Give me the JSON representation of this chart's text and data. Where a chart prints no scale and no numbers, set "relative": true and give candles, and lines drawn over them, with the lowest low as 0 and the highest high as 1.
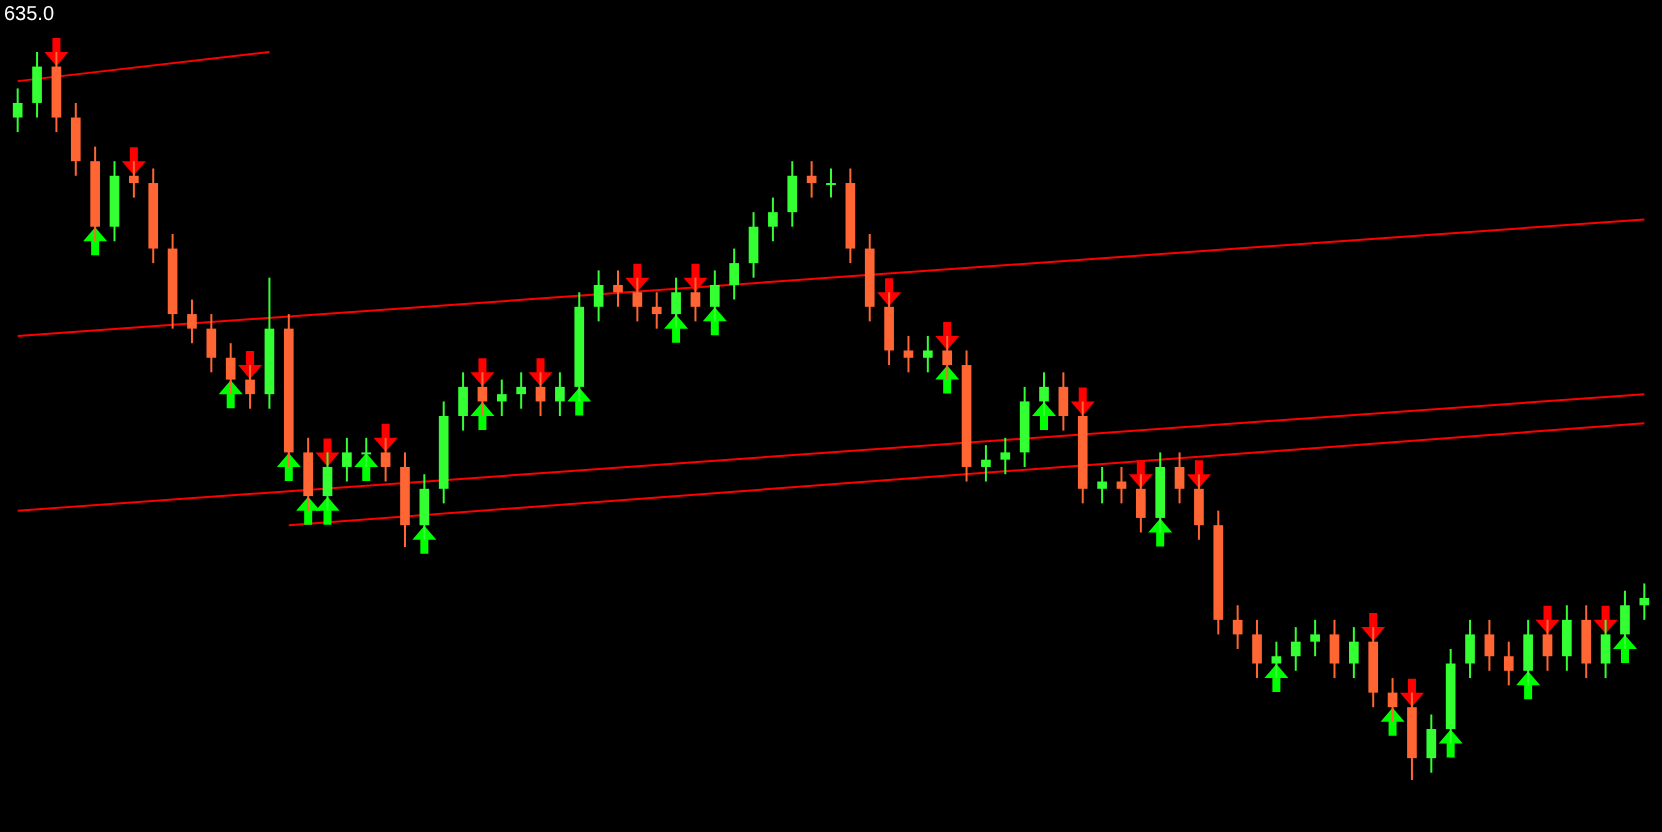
{
  "chart_data": {
    "type": "candlestick",
    "relative": true,
    "annotations": [
      "635.0"
    ],
    "categories": [
      null,
      null,
      null,
      null,
      null,
      null,
      null,
      null,
      null,
      null,
      null,
      null,
      null,
      null,
      null,
      null,
      null,
      null,
      null,
      null,
      null,
      null,
      null,
      null,
      null,
      null,
      null,
      null,
      null,
      null,
      null,
      null,
      null,
      null,
      null,
      null,
      null,
      null,
      null,
      null,
      null,
      null,
      null,
      null,
      null,
      null,
      null,
      null,
      null,
      null,
      null,
      null,
      null,
      null,
      null,
      null,
      null,
      null,
      null,
      null,
      null,
      null,
      null,
      null,
      null,
      null,
      null,
      null,
      null,
      null,
      null,
      null,
      null,
      null,
      null,
      null,
      null,
      null,
      null,
      null,
      null,
      null,
      null,
      null,
      null
    ],
    "ohlc": [
      [
        0.91,
        0.95,
        0.89,
        0.93
      ],
      [
        0.93,
        1.0,
        0.91,
        0.98
      ],
      [
        0.98,
        1.0,
        0.89,
        0.91
      ],
      [
        0.91,
        0.93,
        0.83,
        0.85
      ],
      [
        0.85,
        0.87,
        0.74,
        0.76
      ],
      [
        0.76,
        0.85,
        0.74,
        0.83
      ],
      [
        0.83,
        0.85,
        0.8,
        0.82
      ],
      [
        0.82,
        0.84,
        0.71,
        0.73
      ],
      [
        0.73,
        0.75,
        0.62,
        0.64
      ],
      [
        0.64,
        0.66,
        0.6,
        0.62
      ],
      [
        0.62,
        0.64,
        0.56,
        0.58
      ],
      [
        0.58,
        0.6,
        0.53,
        0.55
      ],
      [
        0.55,
        0.57,
        0.51,
        0.53
      ],
      [
        0.53,
        0.69,
        0.51,
        0.62
      ],
      [
        0.62,
        0.64,
        0.43,
        0.45
      ],
      [
        0.45,
        0.47,
        0.37,
        0.39
      ],
      [
        0.39,
        0.45,
        0.37,
        0.43
      ],
      [
        0.43,
        0.47,
        0.41,
        0.45
      ],
      [
        0.45,
        0.47,
        0.43,
        0.45
      ],
      [
        0.45,
        0.47,
        0.41,
        0.43
      ],
      [
        0.43,
        0.45,
        0.32,
        0.35
      ],
      [
        0.35,
        0.42,
        0.33,
        0.4
      ],
      [
        0.4,
        0.52,
        0.38,
        0.5
      ],
      [
        0.5,
        0.56,
        0.48,
        0.54
      ],
      [
        0.54,
        0.56,
        0.5,
        0.52
      ],
      [
        0.52,
        0.55,
        0.5,
        0.53
      ],
      [
        0.53,
        0.56,
        0.51,
        0.54
      ],
      [
        0.54,
        0.56,
        0.5,
        0.52
      ],
      [
        0.52,
        0.56,
        0.5,
        0.54
      ],
      [
        0.54,
        0.67,
        0.52,
        0.65
      ],
      [
        0.65,
        0.7,
        0.63,
        0.68
      ],
      [
        0.68,
        0.7,
        0.65,
        0.67
      ],
      [
        0.67,
        0.69,
        0.63,
        0.65
      ],
      [
        0.65,
        0.67,
        0.62,
        0.64
      ],
      [
        0.64,
        0.69,
        0.62,
        0.67
      ],
      [
        0.67,
        0.69,
        0.63,
        0.65
      ],
      [
        0.65,
        0.7,
        0.63,
        0.68
      ],
      [
        0.68,
        0.73,
        0.66,
        0.71
      ],
      [
        0.71,
        0.78,
        0.69,
        0.76
      ],
      [
        0.76,
        0.8,
        0.74,
        0.78
      ],
      [
        0.78,
        0.85,
        0.76,
        0.83
      ],
      [
        0.83,
        0.85,
        0.8,
        0.82
      ],
      [
        0.82,
        0.84,
        0.8,
        0.82
      ],
      [
        0.82,
        0.84,
        0.71,
        0.73
      ],
      [
        0.73,
        0.75,
        0.63,
        0.65
      ],
      [
        0.65,
        0.67,
        0.57,
        0.59
      ],
      [
        0.59,
        0.61,
        0.56,
        0.58
      ],
      [
        0.58,
        0.61,
        0.56,
        0.59
      ],
      [
        0.59,
        0.61,
        0.55,
        0.57
      ],
      [
        0.57,
        0.59,
        0.41,
        0.43
      ],
      [
        0.43,
        0.46,
        0.41,
        0.44
      ],
      [
        0.44,
        0.47,
        0.42,
        0.45
      ],
      [
        0.45,
        0.54,
        0.43,
        0.52
      ],
      [
        0.52,
        0.56,
        0.5,
        0.54
      ],
      [
        0.54,
        0.56,
        0.48,
        0.5
      ],
      [
        0.5,
        0.52,
        0.38,
        0.4
      ],
      [
        0.4,
        0.43,
        0.38,
        0.41
      ],
      [
        0.41,
        0.43,
        0.38,
        0.4
      ],
      [
        0.4,
        0.42,
        0.34,
        0.36
      ],
      [
        0.36,
        0.45,
        0.34,
        0.43
      ],
      [
        0.43,
        0.45,
        0.38,
        0.4
      ],
      [
        0.4,
        0.42,
        0.33,
        0.35
      ],
      [
        0.35,
        0.37,
        0.2,
        0.22
      ],
      [
        0.22,
        0.24,
        0.18,
        0.2
      ],
      [
        0.2,
        0.22,
        0.14,
        0.16
      ],
      [
        0.16,
        0.19,
        0.14,
        0.17
      ],
      [
        0.17,
        0.21,
        0.15,
        0.19
      ],
      [
        0.19,
        0.22,
        0.17,
        0.2
      ],
      [
        0.2,
        0.22,
        0.14,
        0.16
      ],
      [
        0.16,
        0.21,
        0.14,
        0.19
      ],
      [
        0.19,
        0.21,
        0.1,
        0.12
      ],
      [
        0.12,
        0.14,
        0.08,
        0.1
      ],
      [
        0.1,
        0.12,
        0.0,
        0.03
      ],
      [
        0.03,
        0.09,
        0.01,
        0.07
      ],
      [
        0.07,
        0.18,
        0.05,
        0.16
      ],
      [
        0.16,
        0.22,
        0.14,
        0.2
      ],
      [
        0.2,
        0.22,
        0.15,
        0.17
      ],
      [
        0.17,
        0.19,
        0.13,
        0.15
      ],
      [
        0.15,
        0.22,
        0.13,
        0.2
      ],
      [
        0.2,
        0.22,
        0.15,
        0.17
      ],
      [
        0.17,
        0.24,
        0.15,
        0.22
      ],
      [
        0.22,
        0.24,
        0.14,
        0.16
      ],
      [
        0.16,
        0.22,
        0.14,
        0.2
      ],
      [
        0.2,
        0.26,
        0.18,
        0.24
      ],
      [
        0.24,
        0.27,
        0.22,
        0.25
      ]
    ],
    "series": [
      {
        "type": "line",
        "color": "#ff0000",
        "values": [
          0.96,
          null,
          null,
          null,
          null,
          null,
          null,
          null,
          null,
          null,
          null,
          null,
          null,
          1.0,
          null,
          null,
          null,
          null,
          null,
          null,
          null,
          null,
          null,
          null,
          null,
          null,
          null,
          null,
          null,
          null,
          null,
          null,
          null,
          null,
          null,
          null,
          null,
          null,
          null,
          null,
          null,
          null,
          null,
          null,
          null,
          null,
          null,
          null,
          null,
          null,
          null,
          null,
          null,
          null,
          null,
          null,
          null,
          null,
          null,
          null,
          null,
          null,
          null,
          null,
          null,
          null,
          null,
          null,
          null,
          null,
          null,
          null,
          null,
          null,
          null,
          null,
          null,
          null,
          null,
          null,
          null,
          null,
          null,
          null,
          null
        ]
      },
      {
        "type": "line",
        "color": "#ff0000",
        "values": [
          0.61,
          null,
          null,
          null,
          null,
          null,
          null,
          null,
          null,
          null,
          null,
          null,
          null,
          null,
          null,
          null,
          null,
          null,
          null,
          null,
          null,
          null,
          null,
          null,
          null,
          null,
          null,
          null,
          null,
          null,
          null,
          null,
          null,
          null,
          null,
          null,
          null,
          null,
          null,
          null,
          null,
          null,
          null,
          null,
          null,
          null,
          null,
          null,
          null,
          null,
          null,
          null,
          null,
          null,
          null,
          null,
          null,
          null,
          null,
          null,
          null,
          null,
          null,
          null,
          null,
          null,
          null,
          null,
          null,
          null,
          null,
          null,
          null,
          null,
          null,
          null,
          null,
          null,
          null,
          null,
          null,
          null,
          null,
          null,
          0.77
        ]
      },
      {
        "type": "line",
        "color": "#ff0000",
        "values": [
          0.37,
          null,
          null,
          null,
          null,
          null,
          null,
          null,
          null,
          null,
          null,
          null,
          null,
          null,
          null,
          null,
          null,
          null,
          null,
          null,
          null,
          null,
          null,
          null,
          null,
          null,
          null,
          null,
          null,
          null,
          null,
          null,
          null,
          null,
          null,
          null,
          null,
          null,
          null,
          null,
          null,
          null,
          null,
          null,
          null,
          null,
          null,
          null,
          null,
          null,
          null,
          null,
          null,
          null,
          null,
          null,
          null,
          null,
          null,
          null,
          null,
          null,
          null,
          null,
          null,
          null,
          null,
          null,
          null,
          null,
          null,
          null,
          null,
          null,
          null,
          null,
          null,
          null,
          null,
          null,
          null,
          null,
          null,
          null,
          0.53
        ]
      },
      {
        "type": "line",
        "color": "#ff0000",
        "values": [
          null,
          null,
          null,
          null,
          null,
          null,
          null,
          null,
          null,
          null,
          null,
          null,
          null,
          null,
          0.35,
          null,
          null,
          null,
          null,
          null,
          null,
          null,
          null,
          null,
          null,
          null,
          null,
          null,
          null,
          null,
          null,
          null,
          null,
          null,
          null,
          null,
          null,
          null,
          null,
          null,
          null,
          null,
          null,
          null,
          null,
          null,
          null,
          null,
          null,
          null,
          null,
          null,
          null,
          null,
          null,
          null,
          null,
          null,
          null,
          null,
          null,
          null,
          null,
          null,
          null,
          null,
          null,
          null,
          null,
          null,
          null,
          null,
          null,
          null,
          null,
          null,
          null,
          null,
          null,
          null,
          null,
          null,
          null,
          null,
          0.49
        ]
      },
      {
        "type": "scatter",
        "color": "#ff0000",
        "values": [
          null,
          null,
          1.0,
          null,
          null,
          null,
          0.85,
          null,
          null,
          null,
          null,
          null,
          0.57,
          null,
          null,
          null,
          0.45,
          null,
          null,
          0.47,
          null,
          null,
          null,
          null,
          0.56,
          null,
          null,
          0.56,
          null,
          null,
          null,
          null,
          0.69,
          null,
          null,
          0.69,
          null,
          null,
          null,
          null,
          null,
          null,
          null,
          null,
          null,
          0.67,
          null,
          null,
          0.61,
          null,
          null,
          null,
          null,
          null,
          null,
          0.52,
          null,
          null,
          0.42,
          null,
          null,
          0.42,
          null,
          null,
          null,
          null,
          null,
          null,
          null,
          null,
          0.21,
          null,
          0.12,
          null,
          null,
          null,
          null,
          null,
          null,
          0.22,
          null,
          null,
          0.22,
          null,
          null
        ]
      },
      {
        "type": "scatter",
        "color": "#00ff00",
        "values": [
          null,
          null,
          null,
          null,
          0.74,
          null,
          null,
          null,
          null,
          null,
          null,
          0.53,
          null,
          null,
          0.43,
          0.37,
          0.37,
          null,
          0.43,
          null,
          null,
          0.33,
          null,
          null,
          0.5,
          null,
          null,
          null,
          null,
          0.52,
          null,
          null,
          null,
          null,
          0.62,
          null,
          0.63,
          null,
          null,
          null,
          null,
          null,
          null,
          null,
          null,
          null,
          null,
          null,
          0.55,
          null,
          null,
          null,
          null,
          0.5,
          null,
          null,
          null,
          null,
          null,
          0.34,
          null,
          null,
          null,
          null,
          null,
          0.14,
          null,
          null,
          null,
          null,
          null,
          0.08,
          null,
          null,
          0.05,
          null,
          null,
          null,
          0.13,
          null,
          null,
          null,
          null,
          0.18,
          null
        ]
      }
    ]
  }
}
